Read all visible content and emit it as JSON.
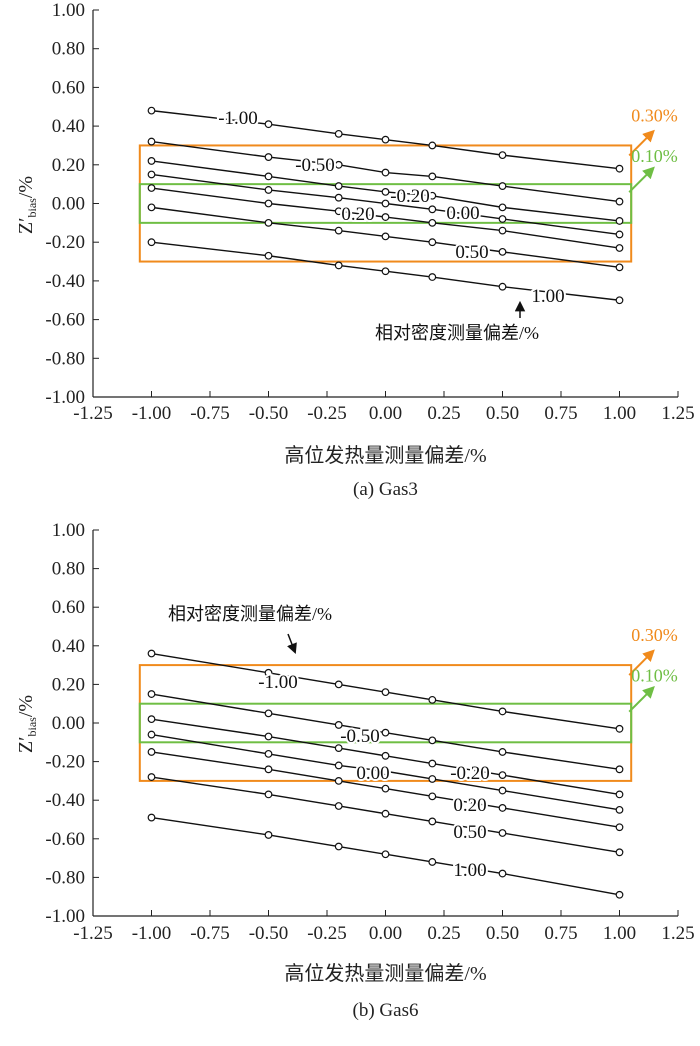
{
  "colors": {
    "outer_box": "#f08a1c",
    "inner_box": "#6fbe44",
    "line": "#111111"
  },
  "chart_data": [
    {
      "type": "line",
      "caption": "(a) Gas3",
      "xlabel": "高位发热量测量偏差/%",
      "ylabel": "Z′bias/%",
      "ylabel_main": "Z′",
      "ylabel_sub": "bias",
      "ylabel_unit": "/%",
      "xlim": [
        -1.25,
        1.25
      ],
      "ylim": [
        -1.0,
        1.0
      ],
      "x_ticks": [
        "-1.25",
        "-1.00",
        "-0.75",
        "-0.50",
        "-0.25",
        "0.00",
        "0.25",
        "0.50",
        "0.75",
        "1.00",
        "1.25"
      ],
      "y_ticks": [
        "-1.00",
        "-0.80",
        "-0.60",
        "-0.40",
        "-0.20",
        "0.00",
        "0.20",
        "0.40",
        "0.60",
        "0.80",
        "1.00"
      ],
      "x": [
        -1.0,
        -0.5,
        -0.2,
        0.0,
        0.2,
        0.5,
        1.0
      ],
      "legend_title": "相对密度测量偏差/%",
      "series": [
        {
          "name": "-1.00",
          "values": [
            0.48,
            0.41,
            0.36,
            0.33,
            0.3,
            0.25,
            0.18
          ]
        },
        {
          "name": "-0.50",
          "values": [
            0.32,
            0.24,
            0.2,
            0.16,
            0.14,
            0.09,
            0.01
          ]
        },
        {
          "name": "-0.20",
          "values": [
            0.22,
            0.14,
            0.09,
            0.06,
            0.04,
            -0.02,
            -0.09
          ]
        },
        {
          "name": "0.00",
          "values": [
            0.15,
            0.07,
            0.03,
            0.0,
            -0.03,
            -0.08,
            -0.16
          ]
        },
        {
          "name": "0.20",
          "values": [
            0.08,
            0.0,
            -0.04,
            -0.07,
            -0.1,
            -0.14,
            -0.23
          ]
        },
        {
          "name": "0.50",
          "values": [
            -0.02,
            -0.1,
            -0.14,
            -0.17,
            -0.2,
            -0.25,
            -0.33
          ]
        },
        {
          "name": "1.00",
          "values": [
            -0.2,
            -0.27,
            -0.32,
            -0.35,
            -0.38,
            -0.43,
            -0.5
          ]
        }
      ],
      "boxes": [
        {
          "label": "0.30%",
          "ylim": [
            -0.3,
            0.3
          ],
          "xlim": [
            -1.05,
            1.05
          ]
        },
        {
          "label": "0.10%",
          "ylim": [
            -0.1,
            0.1
          ],
          "xlim": [
            -1.05,
            1.05
          ]
        }
      ]
    },
    {
      "type": "line",
      "caption": "(b) Gas6",
      "xlabel": "高位发热量测量偏差/%",
      "ylabel": "Z′bias/%",
      "ylabel_main": "Z′",
      "ylabel_sub": "bias",
      "ylabel_unit": "/%",
      "xlim": [
        -1.25,
        1.25
      ],
      "ylim": [
        -1.0,
        1.0
      ],
      "x_ticks": [
        "-1.25",
        "-1.00",
        "-0.75",
        "-0.50",
        "-0.25",
        "0.00",
        "0.25",
        "0.50",
        "0.75",
        "1.00",
        "1.25"
      ],
      "y_ticks": [
        "-1.00",
        "-0.80",
        "-0.60",
        "-0.40",
        "-0.20",
        "0.00",
        "0.20",
        "0.40",
        "0.60",
        "0.80",
        "1.00"
      ],
      "x": [
        -1.0,
        -0.5,
        -0.2,
        0.0,
        0.2,
        0.5,
        1.0
      ],
      "legend_title": "相对密度测量偏差/%",
      "series": [
        {
          "name": "-1.00",
          "values": [
            0.36,
            0.26,
            0.2,
            0.16,
            0.12,
            0.06,
            -0.03
          ]
        },
        {
          "name": "-0.50",
          "values": [
            0.15,
            0.05,
            -0.01,
            -0.05,
            -0.09,
            -0.15,
            -0.24
          ]
        },
        {
          "name": "-0.20",
          "values": [
            0.02,
            -0.07,
            -0.13,
            -0.17,
            -0.21,
            -0.27,
            -0.37
          ]
        },
        {
          "name": "0.00",
          "values": [
            -0.06,
            -0.16,
            -0.22,
            -0.25,
            -0.29,
            -0.35,
            -0.45
          ]
        },
        {
          "name": "0.20",
          "values": [
            -0.15,
            -0.24,
            -0.3,
            -0.34,
            -0.38,
            -0.44,
            -0.54
          ]
        },
        {
          "name": "0.50",
          "values": [
            -0.28,
            -0.37,
            -0.43,
            -0.47,
            -0.51,
            -0.57,
            -0.67
          ]
        },
        {
          "name": "1.00",
          "values": [
            -0.49,
            -0.58,
            -0.64,
            -0.68,
            -0.72,
            -0.78,
            -0.89
          ]
        }
      ],
      "boxes": [
        {
          "label": "0.30%",
          "ylim": [
            -0.3,
            0.3
          ],
          "xlim": [
            -1.05,
            1.05
          ]
        },
        {
          "label": "0.10%",
          "ylim": [
            -0.1,
            0.1
          ],
          "xlim": [
            -1.05,
            1.05
          ]
        }
      ]
    }
  ]
}
